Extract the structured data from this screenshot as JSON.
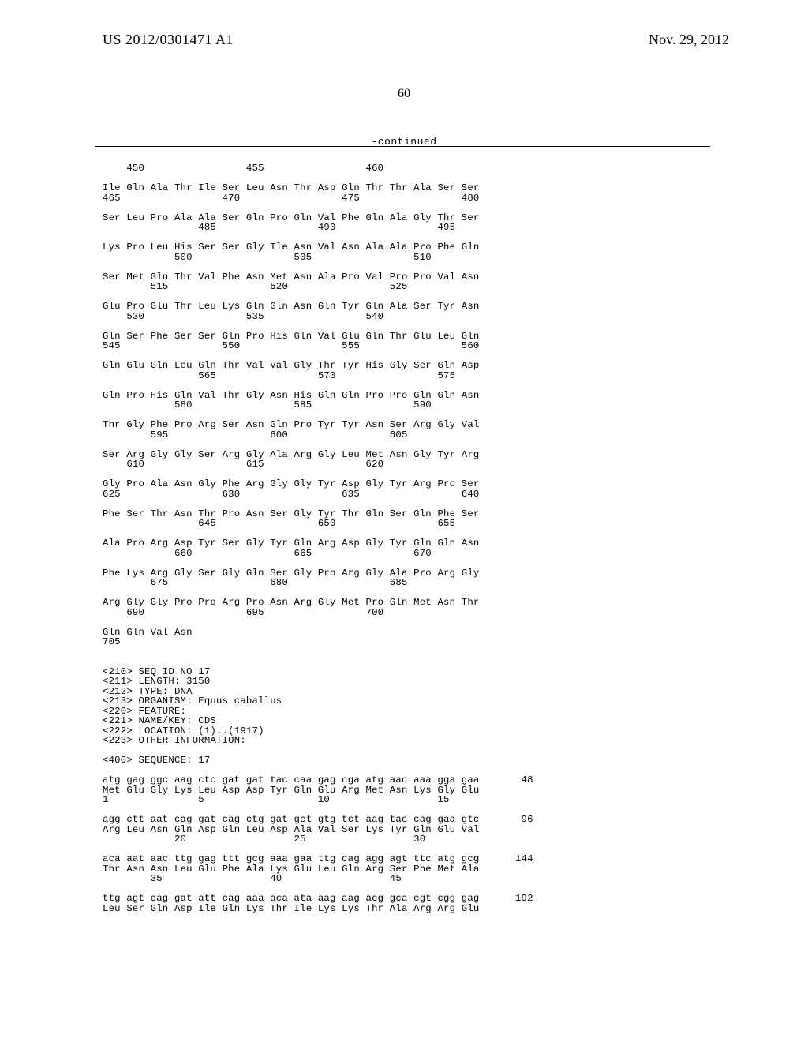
{
  "header": {
    "publication_number": "US 2012/0301471 A1",
    "publication_date": "Nov. 29, 2012"
  },
  "page_number": "60",
  "continued_label": "-continued",
  "sequence_text": "    450                 455                 460\n\nIle Gln Ala Thr Ile Ser Leu Asn Thr Asp Gln Thr Thr Ala Ser Ser\n465                 470                 475                 480\n\nSer Leu Pro Ala Ala Ser Gln Pro Gln Val Phe Gln Ala Gly Thr Ser\n                485                 490                 495\n\nLys Pro Leu His Ser Ser Gly Ile Asn Val Asn Ala Ala Pro Phe Gln\n            500                 505                 510\n\nSer Met Gln Thr Val Phe Asn Met Asn Ala Pro Val Pro Pro Val Asn\n        515                 520                 525\n\nGlu Pro Glu Thr Leu Lys Gln Gln Asn Gln Tyr Gln Ala Ser Tyr Asn\n    530                 535                 540\n\nGln Ser Phe Ser Ser Gln Pro His Gln Val Glu Gln Thr Glu Leu Gln\n545                 550                 555                 560\n\nGln Glu Gln Leu Gln Thr Val Val Gly Thr Tyr His Gly Ser Gln Asp\n                565                 570                 575\n\nGln Pro His Gln Val Thr Gly Asn His Gln Gln Pro Pro Gln Gln Asn\n            580                 585                 590\n\nThr Gly Phe Pro Arg Ser Asn Gln Pro Tyr Tyr Asn Ser Arg Gly Val\n        595                 600                 605\n\nSer Arg Gly Gly Ser Arg Gly Ala Arg Gly Leu Met Asn Gly Tyr Arg\n    610                 615                 620\n\nGly Pro Ala Asn Gly Phe Arg Gly Gly Tyr Asp Gly Tyr Arg Pro Ser\n625                 630                 635                 640\n\nPhe Ser Thr Asn Thr Pro Asn Ser Gly Tyr Thr Gln Ser Gln Phe Ser\n                645                 650                 655\n\nAla Pro Arg Asp Tyr Ser Gly Tyr Gln Arg Asp Gly Tyr Gln Gln Asn\n            660                 665                 670\n\nPhe Lys Arg Gly Ser Gly Gln Ser Gly Pro Arg Gly Ala Pro Arg Gly\n        675                 680                 685\n\nArg Gly Gly Pro Pro Arg Pro Asn Arg Gly Met Pro Gln Met Asn Thr\n    690                 695                 700\n\nGln Gln Val Asn\n705\n\n\n<210> SEQ ID NO 17\n<211> LENGTH: 3150\n<212> TYPE: DNA\n<213> ORGANISM: Equus caballus\n<220> FEATURE:\n<221> NAME/KEY: CDS\n<222> LOCATION: (1)..(1917)\n<223> OTHER INFORMATION:\n\n<400> SEQUENCE: 17\n\natg gag ggc aag ctc gat gat tac caa gag cga atg aac aaa gga gaa       48\nMet Glu Gly Lys Leu Asp Asp Tyr Gln Glu Arg Met Asn Lys Gly Glu\n1               5                   10                  15\n\nagg ctt aat cag gat cag ctg gat gct gtg tct aag tac cag gaa gtc       96\nArg Leu Asn Gln Asp Gln Leu Asp Ala Val Ser Lys Tyr Gln Glu Val\n            20                  25                  30\n\naca aat aac ttg gag ttt gcg aaa gaa ttg cag agg agt ttc atg gcg      144\nThr Asn Asn Leu Glu Phe Ala Lys Glu Leu Gln Arg Ser Phe Met Ala\n        35                  40                  45\n\nttg agt cag gat att cag aaa aca ata aag aag acg gca cgt cgg gag      192\nLeu Ser Gln Asp Ile Gln Lys Thr Ile Lys Lys Thr Ala Arg Arg Glu"
}
